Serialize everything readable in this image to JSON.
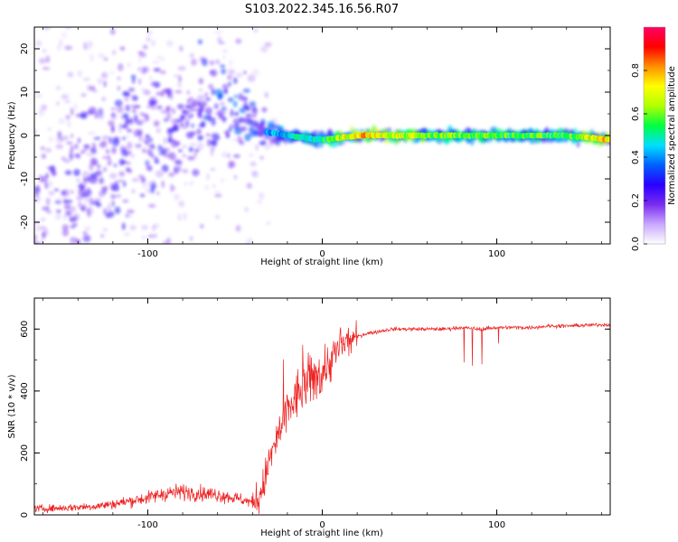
{
  "figure": {
    "title": "S103.2022.345.16.56.R07"
  },
  "chart_data": [
    {
      "type": "heatmap",
      "xlabel": "Height of straight line (km)",
      "ylabel": "Frequency (Hz)",
      "xlim": [
        -165,
        165
      ],
      "ylim": [
        -25,
        25
      ],
      "x_ticks": [
        -100,
        0,
        100
      ],
      "y_ticks": [
        -20,
        -10,
        0,
        10,
        20
      ],
      "colorbar": {
        "label": "Normalized spectral amplitude",
        "range": [
          0,
          1
        ],
        "ticks": [
          0.0,
          0.2,
          0.4,
          0.6,
          0.8
        ],
        "colormap": [
          "#ffffff",
          "#c9a8ff",
          "#7a2cf0",
          "#2a00ff",
          "#0060ff",
          "#00e0ff",
          "#00ff40",
          "#b0ff00",
          "#ffff00",
          "#ff9000",
          "#ff0000",
          "#ff0066"
        ]
      },
      "ridge": [
        {
          "x": -160,
          "f": -22,
          "amp": 0.25
        },
        {
          "x": -120,
          "f": -4,
          "amp": 0.3
        },
        {
          "x": -100,
          "f": -1,
          "amp": 0.3
        },
        {
          "x": -80,
          "f": 3,
          "amp": 0.28
        },
        {
          "x": -60,
          "f": 6,
          "amp": 0.35
        },
        {
          "x": -45,
          "f": 7,
          "amp": 0.4
        },
        {
          "x": -35,
          "f": 1,
          "amp": 0.35
        },
        {
          "x": -20,
          "f": 0,
          "amp": 0.45
        },
        {
          "x": 0,
          "f": -1,
          "amp": 0.5
        },
        {
          "x": 20,
          "f": 0,
          "amp": 0.75
        },
        {
          "x": 60,
          "f": 0,
          "amp": 0.6
        },
        {
          "x": 100,
          "f": 0,
          "amp": 0.55
        },
        {
          "x": 140,
          "f": 0,
          "amp": 0.55
        },
        {
          "x": 165,
          "f": -1,
          "amp": 0.75
        }
      ]
    },
    {
      "type": "line",
      "xlabel": "Height of straight line (km)",
      "ylabel": "SNR (10 * v/v)",
      "xlim": [
        -165,
        165
      ],
      "ylim": [
        0,
        700
      ],
      "x_ticks": [
        -100,
        0,
        100
      ],
      "y_ticks": [
        0,
        200,
        400,
        600
      ],
      "color": "#ee2222",
      "series": [
        {
          "x": [
            -165,
            -150,
            -140,
            -130,
            -120,
            -110,
            -100,
            -90,
            -80,
            -70,
            -60,
            -50,
            -40,
            -35,
            -30,
            -25,
            -20,
            -15,
            -10,
            -5,
            0,
            5,
            10,
            15,
            20,
            25,
            30,
            35,
            40,
            50,
            60,
            70,
            80,
            90,
            100,
            110,
            120,
            130,
            140,
            150,
            165
          ],
          "y": [
            20,
            22,
            25,
            28,
            35,
            45,
            55,
            70,
            75,
            70,
            65,
            55,
            40,
            70,
            180,
            260,
            330,
            380,
            420,
            440,
            460,
            500,
            540,
            560,
            575,
            585,
            590,
            595,
            600,
            600,
            600,
            600,
            605,
            600,
            605,
            605,
            605,
            610,
            610,
            612,
            615
          ]
        }
      ]
    }
  ]
}
